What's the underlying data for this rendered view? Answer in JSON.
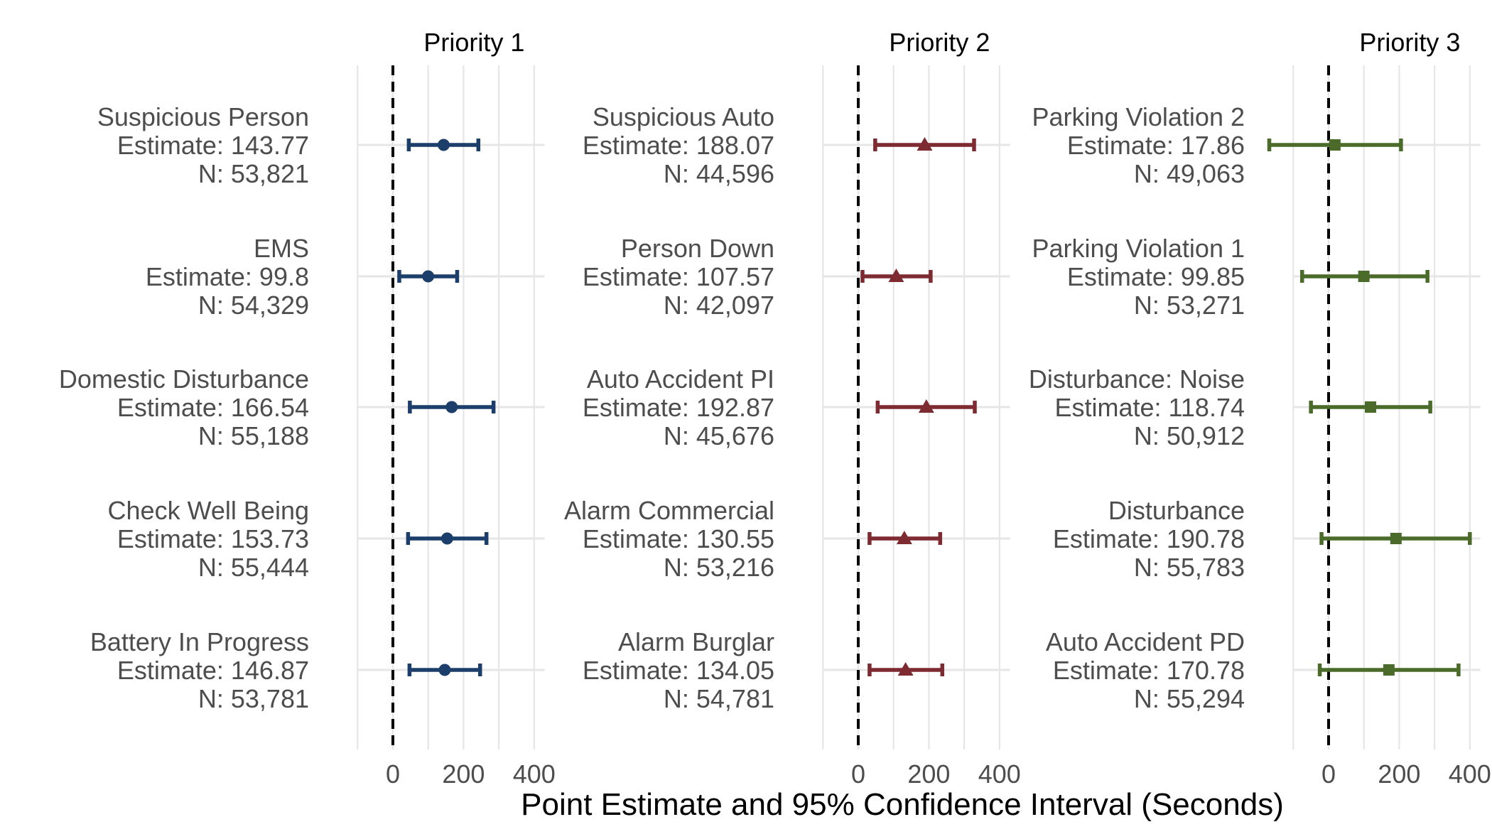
{
  "xlabel": "Point Estimate and 95% Confidence Interval (Seconds)",
  "chart_data": [
    {
      "type": "forest",
      "title": "Priority 1",
      "color": "#1c3e6b",
      "marker": "circle",
      "xlim": [
        -100,
        430
      ],
      "xticks": [
        0,
        200,
        400
      ],
      "grid": true,
      "reference_line": 0,
      "rows": [
        {
          "name": "Suspicious Person",
          "estimate_label": "Estimate: 143.77",
          "n_label": "N: 53,821",
          "estimate": 143.77,
          "lower": 45,
          "upper": 242
        },
        {
          "name": "EMS",
          "estimate_label": "Estimate: 99.8",
          "n_label": "N: 54,329",
          "estimate": 99.8,
          "lower": 18,
          "upper": 182
        },
        {
          "name": "Domestic Disturbance",
          "estimate_label": "Estimate: 166.54",
          "n_label": "N: 55,188",
          "estimate": 166.54,
          "lower": 48,
          "upper": 285
        },
        {
          "name": "Check Well Being",
          "estimate_label": "Estimate: 153.73",
          "n_label": "N: 55,444",
          "estimate": 153.73,
          "lower": 43,
          "upper": 265
        },
        {
          "name": "Battery In Progress",
          "estimate_label": "Estimate: 146.87",
          "n_label": "N: 53,781",
          "estimate": 146.87,
          "lower": 47,
          "upper": 247
        }
      ]
    },
    {
      "type": "forest",
      "title": "Priority 2",
      "color": "#7d2a31",
      "marker": "triangle",
      "xlim": [
        -100,
        430
      ],
      "xticks": [
        0,
        200,
        400
      ],
      "grid": true,
      "reference_line": 0,
      "rows": [
        {
          "name": "Suspicious Auto",
          "estimate_label": "Estimate: 188.07",
          "n_label": "N: 44,596",
          "estimate": 188.07,
          "lower": 48,
          "upper": 328
        },
        {
          "name": "Person Down",
          "estimate_label": "Estimate: 107.57",
          "n_label": "N: 42,097",
          "estimate": 107.57,
          "lower": 12,
          "upper": 205
        },
        {
          "name": "Auto Accident PI",
          "estimate_label": "Estimate: 192.87",
          "n_label": "N: 45,676",
          "estimate": 192.87,
          "lower": 55,
          "upper": 330
        },
        {
          "name": "Alarm Commercial",
          "estimate_label": "Estimate: 130.55",
          "n_label": "N: 53,216",
          "estimate": 130.55,
          "lower": 32,
          "upper": 232
        },
        {
          "name": "Alarm Burglar",
          "estimate_label": "Estimate: 134.05",
          "n_label": "N: 54,781",
          "estimate": 134.05,
          "lower": 32,
          "upper": 238
        }
      ]
    },
    {
      "type": "forest",
      "title": "Priority 3",
      "color": "#4a6b2a",
      "marker": "square",
      "xlim": [
        -100,
        430
      ],
      "xticks": [
        0,
        200,
        400
      ],
      "grid": true,
      "reference_line": 0,
      "rows": [
        {
          "name": "Parking Violation 2",
          "estimate_label": "Estimate: 17.86",
          "n_label": "N: 49,063",
          "estimate": 17.86,
          "lower": -168,
          "upper": 205
        },
        {
          "name": "Parking Violation 1",
          "estimate_label": "Estimate: 99.85",
          "n_label": "N: 53,271",
          "estimate": 99.85,
          "lower": -75,
          "upper": 280
        },
        {
          "name": "Disturbance: Noise",
          "estimate_label": "Estimate: 118.74",
          "n_label": "N: 50,912",
          "estimate": 118.74,
          "lower": -50,
          "upper": 288
        },
        {
          "name": "Disturbance",
          "estimate_label": "Estimate: 190.78",
          "n_label": "N: 55,783",
          "estimate": 190.78,
          "lower": -20,
          "upper": 400
        },
        {
          "name": "Auto Accident PD",
          "estimate_label": "Estimate: 170.78",
          "n_label": "N: 55,294",
          "estimate": 170.78,
          "lower": -25,
          "upper": 368
        }
      ]
    }
  ]
}
